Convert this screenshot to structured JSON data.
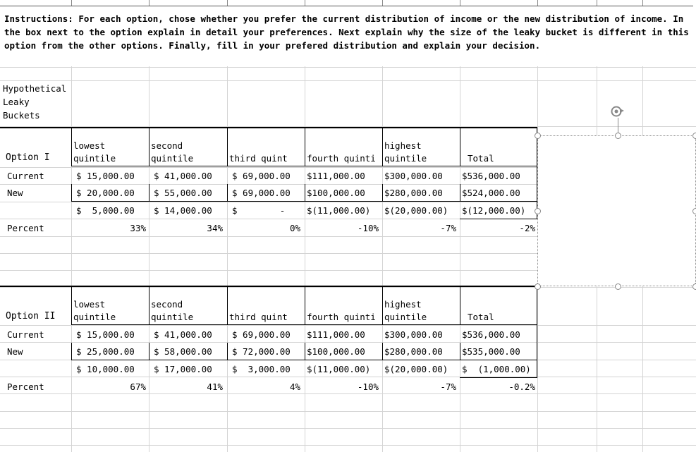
{
  "instructions": "Instructions:  For each option, chose whether you prefer the current distribution of income or the new distribution of income. In the box next to the option explain in detail your preferences.  Next explain why the size of the leaky bucket is different in this option from the other options. Finally, fill in your prefered distribution and explain your decision.",
  "section_title": "Hypothetical Leaky Buckets",
  "options": [
    {
      "label": "Option I",
      "headers": [
        "lowest\nquintile",
        "second\nquintile",
        "third  quint",
        "fourth quinti",
        "highest\nquintile",
        "Total"
      ],
      "rows": [
        {
          "label": "Current",
          "values": [
            "$ 15,000.00",
            "$ 41,000.00",
            "$ 69,000.00",
            "$111,000.00",
            "$300,000.00",
            "$536,000.00"
          ]
        },
        {
          "label": "New",
          "values": [
            "$ 20,000.00",
            "$ 55,000.00",
            "$ 69,000.00",
            "$100,000.00",
            "$280,000.00",
            "$524,000.00"
          ]
        },
        {
          "label": "",
          "values": [
            "$  5,000.00",
            "$ 14,000.00",
            "$        -",
            "$(11,000.00)",
            "$(20,000.00)",
            "$(12,000.00)"
          ]
        },
        {
          "label": "Percent",
          "values": [
            "33%",
            "34%",
            "0%",
            "-10%",
            "-7%",
            "-2%"
          ]
        }
      ]
    },
    {
      "label": "Option II",
      "headers": [
        "lowest\nquintile",
        "second\nquintile",
        "third  quint",
        "fourth quinti",
        "highest\nquintile",
        "Total"
      ],
      "rows": [
        {
          "label": "Current",
          "values": [
            "$ 15,000.00",
            "$ 41,000.00",
            "$ 69,000.00",
            "$111,000.00",
            "$300,000.00",
            "$536,000.00"
          ]
        },
        {
          "label": "New",
          "values": [
            "$ 25,000.00",
            "$ 58,000.00",
            "$ 72,000.00",
            "$100,000.00",
            "$280,000.00",
            "$535,000.00"
          ]
        },
        {
          "label": "",
          "values": [
            "$ 10,000.00",
            "$ 17,000.00",
            "$  3,000.00",
            "$(11,000.00)",
            "$(20,000.00)",
            "$  (1,000.00)"
          ]
        },
        {
          "label": "Percent",
          "values": [
            "67%",
            "41%",
            "4%",
            "-10%",
            "-7%",
            "-0.2%"
          ]
        }
      ]
    }
  ],
  "icons": {
    "rotate_handle": "rotate-icon"
  },
  "colors": {
    "gridline": "#d4d4d4",
    "border": "#000000",
    "handle": "#888888"
  }
}
